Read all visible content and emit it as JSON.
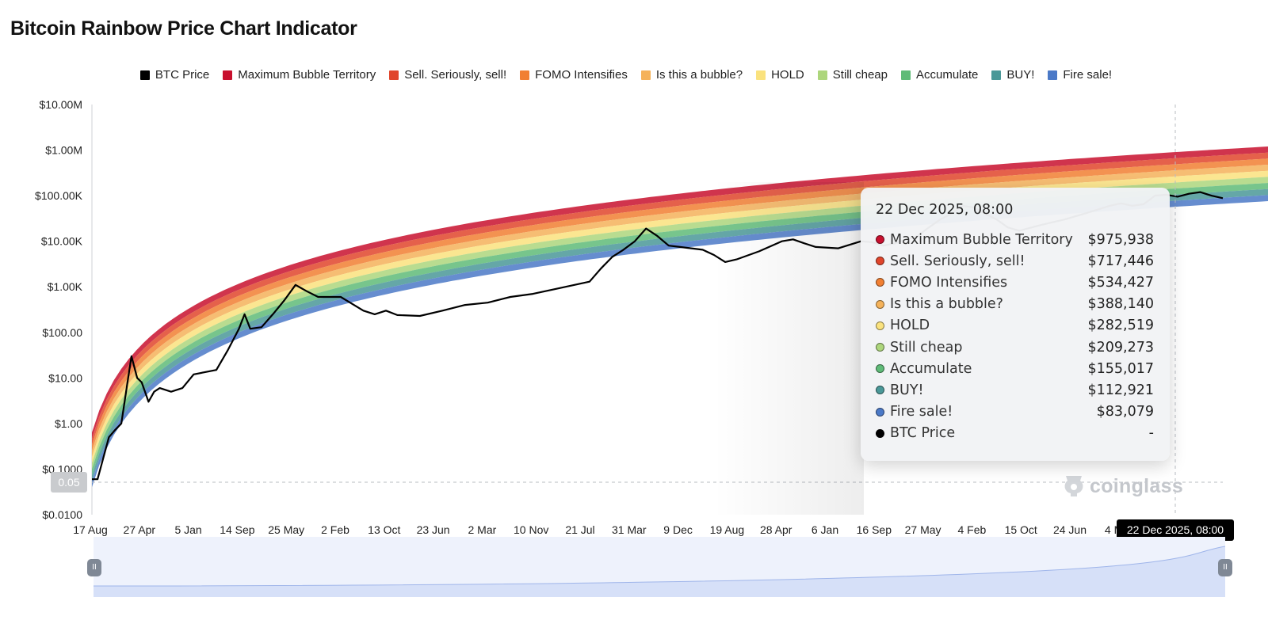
{
  "title": "Bitcoin Rainbow Price Chart Indicator",
  "chart_data": {
    "type": "area",
    "title": "Bitcoin Rainbow Price Chart Indicator",
    "y_scale": "log",
    "ylim": [
      0.01,
      10000000
    ],
    "y_tick_labels": [
      "$10.00M",
      "$1.00M",
      "$100.00K",
      "$10.00K",
      "$1.00K",
      "$100.00",
      "$10.00",
      "$1.00",
      "$0.1000",
      "$0.0100"
    ],
    "x_tick_labels": [
      "17 Aug",
      "27 Apr",
      "5 Jan",
      "14 Sep",
      "25 May",
      "2 Feb",
      "13 Oct",
      "23 Jun",
      "2 Mar",
      "10 Nov",
      "21 Jul",
      "31 Mar",
      "9 Dec",
      "19 Aug",
      "28 Apr",
      "6 Jan",
      "16 Sep",
      "27 May",
      "4 Feb",
      "15 Oct",
      "24 Jun",
      "4 Mar"
    ],
    "legend_position": "top",
    "grid": false,
    "series": [
      {
        "name": "BTC Price",
        "color": "#000000"
      },
      {
        "name": "Maximum Bubble Territory",
        "color": "#c8102e"
      },
      {
        "name": "Sell. Seriously, sell!",
        "color": "#e0452b"
      },
      {
        "name": "FOMO Intensifies",
        "color": "#f17f32"
      },
      {
        "name": "Is this a bubble?",
        "color": "#f5b25a"
      },
      {
        "name": "HOLD",
        "color": "#fae27e"
      },
      {
        "name": "Still cheap",
        "color": "#add67c"
      },
      {
        "name": "Accumulate",
        "color": "#5fbb78"
      },
      {
        "name": "BUY!",
        "color": "#4a9898"
      },
      {
        "name": "Fire sale!",
        "color": "#4b79c7"
      }
    ],
    "band_values_at_cursor": [
      975938,
      717446,
      534427,
      388140,
      282519,
      209273,
      155017,
      112921,
      83079
    ],
    "btc_price_points": [
      [
        0,
        0.06
      ],
      [
        0.5,
        0.06
      ],
      [
        1.5,
        0.5
      ],
      [
        2,
        0.7
      ],
      [
        2.6,
        1
      ],
      [
        3.2,
        10
      ],
      [
        3.5,
        30
      ],
      [
        4,
        10
      ],
      [
        4.4,
        8
      ],
      [
        5,
        3
      ],
      [
        5.5,
        5
      ],
      [
        6,
        6
      ],
      [
        7,
        5
      ],
      [
        8,
        6
      ],
      [
        9,
        12
      ],
      [
        11,
        15
      ],
      [
        12,
        40
      ],
      [
        13,
        120
      ],
      [
        13.5,
        250
      ],
      [
        14,
        120
      ],
      [
        15,
        130
      ],
      [
        16,
        250
      ],
      [
        17,
        500
      ],
      [
        18,
        1100
      ],
      [
        19,
        800
      ],
      [
        20,
        600
      ],
      [
        22,
        600
      ],
      [
        24,
        300
      ],
      [
        25,
        250
      ],
      [
        26,
        300
      ],
      [
        27,
        240
      ],
      [
        29,
        230
      ],
      [
        31,
        300
      ],
      [
        33,
        400
      ],
      [
        35,
        450
      ],
      [
        37,
        600
      ],
      [
        39,
        700
      ],
      [
        41,
        900
      ],
      [
        44,
        1300
      ],
      [
        45,
        2500
      ],
      [
        46,
        4500
      ],
      [
        47,
        6500
      ],
      [
        48,
        10000
      ],
      [
        49,
        19000
      ],
      [
        50,
        13000
      ],
      [
        51,
        8000
      ],
      [
        52,
        7500
      ],
      [
        54,
        6500
      ],
      [
        55,
        5000
      ],
      [
        56,
        3500
      ],
      [
        57,
        4000
      ],
      [
        59,
        6000
      ],
      [
        61,
        10000
      ],
      [
        62,
        11000
      ],
      [
        63,
        9000
      ],
      [
        64,
        7500
      ],
      [
        66,
        7000
      ],
      [
        68,
        10000
      ],
      [
        69,
        9500
      ],
      [
        70,
        8000
      ],
      [
        71,
        9000
      ],
      [
        72,
        11000
      ],
      [
        73,
        13000
      ],
      [
        74,
        20000
      ],
      [
        75,
        30000
      ],
      [
        76,
        40000
      ],
      [
        77,
        60000
      ],
      [
        78,
        55000
      ],
      [
        79,
        40000
      ],
      [
        80,
        30000
      ],
      [
        81,
        20000
      ],
      [
        82,
        17000
      ],
      [
        84,
        23000
      ],
      [
        86,
        30000
      ],
      [
        88,
        42000
      ],
      [
        90,
        60000
      ],
      [
        91,
        68000
      ],
      [
        92,
        60000
      ],
      [
        93,
        65000
      ],
      [
        94,
        100000
      ],
      [
        95,
        105000
      ],
      [
        96,
        95000
      ],
      [
        97,
        110000
      ],
      [
        98,
        120000
      ],
      [
        99,
        100000
      ],
      [
        100,
        88000
      ]
    ],
    "cursor_date": "22 Dec 2025, 08:00",
    "cursor_y_value": "0.05"
  },
  "tooltip": {
    "title": "22 Dec 2025, 08:00",
    "rows": [
      {
        "label": "Maximum Bubble Territory",
        "value": "$975,938",
        "color": "#c8102e"
      },
      {
        "label": "Sell. Seriously, sell!",
        "value": "$717,446",
        "color": "#e0452b"
      },
      {
        "label": "FOMO Intensifies",
        "value": "$534,427",
        "color": "#f17f32"
      },
      {
        "label": "Is this a bubble?",
        "value": "$388,140",
        "color": "#f5b25a"
      },
      {
        "label": "HOLD",
        "value": "$282,519",
        "color": "#fae27e"
      },
      {
        "label": "Still cheap",
        "value": "$209,273",
        "color": "#add67c"
      },
      {
        "label": "Accumulate",
        "value": "$155,017",
        "color": "#5fbb78"
      },
      {
        "label": "BUY!",
        "value": "$112,921",
        "color": "#4a9898"
      },
      {
        "label": "Fire sale!",
        "value": "$83,079",
        "color": "#4b79c7"
      },
      {
        "label": "BTC Price",
        "value": "-",
        "color": "#000000"
      }
    ]
  },
  "watermark": "coinglass",
  "crosshair": {
    "date_label": "22 Dec 2025, 08:00",
    "y_label": "0.05"
  }
}
